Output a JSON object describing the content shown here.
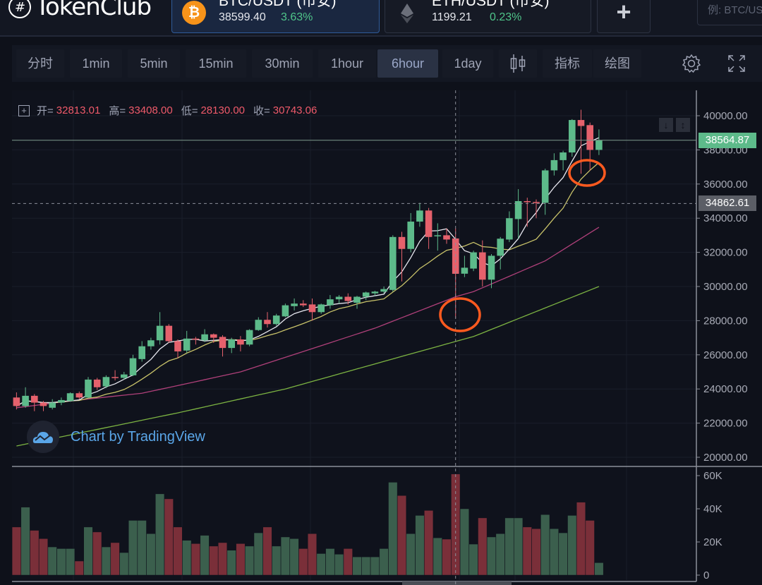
{
  "header": {
    "logo": "TokenClub",
    "tabs": [
      {
        "name": "BTC/USDT (币安)",
        "price": "38599.40",
        "change": "3.63%",
        "icon": "bitcoin-icon",
        "active": true
      },
      {
        "name": "ETH/USDT (币安)",
        "price": "1199.21",
        "change": "0.23%",
        "icon": "ethereum-icon",
        "active": false
      }
    ],
    "add_label": "+",
    "search_placeholder": "例: BTC/USDT"
  },
  "toolbar": {
    "intervals": [
      "分时",
      "1min",
      "5min",
      "15min",
      "30min",
      "1hour",
      "6hour",
      "1day"
    ],
    "active_interval": "6hour",
    "indicators_label": "指标",
    "drawing_label": "绘图",
    "icons": [
      "candlestick-type-icon",
      "gear-icon",
      "fullscreen-icon"
    ]
  },
  "legend": {
    "open_label": "开=",
    "open": "32813.01",
    "high_label": "高=",
    "high": "33408.00",
    "low_label": "低=",
    "low": "28130.00",
    "close_label": "收=",
    "close": "30743.06"
  },
  "watermark": "Chart by TradingView",
  "colors": {
    "up": "#5dba8a",
    "down": "#e5616c",
    "vol_up": "#3b5f4d",
    "vol_down": "#7a2f39",
    "ma_short": "#e8e8f0",
    "ma_mid": "#c9c36a",
    "ma_long": "#b0407a",
    "ma_longest": "#7cb342",
    "annotation": "#ff5a1f"
  },
  "chart_data": {
    "type": "candlestick",
    "price_axis": {
      "ticks": [
        "40000.00",
        "38000.00",
        "36000.00",
        "34000.00",
        "32000.00",
        "30000.00",
        "28000.00",
        "26000.00",
        "24000.00",
        "22000.00",
        "20000.00"
      ],
      "range": [
        20000,
        40000
      ]
    },
    "volume_axis": {
      "ticks": [
        "60K",
        "40K",
        "20K",
        "0"
      ],
      "range": [
        0,
        60000
      ]
    },
    "last_price_label": "38564.87",
    "crosshair_price_label": "34862.61",
    "crosshair_index": 49,
    "ohlc": [
      [
        23500,
        23800,
        22800,
        23000
      ],
      [
        23000,
        24100,
        22900,
        23600
      ],
      [
        23600,
        23700,
        22700,
        23200
      ],
      [
        23200,
        23300,
        22700,
        23000
      ],
      [
        22900,
        23400,
        22800,
        23200
      ],
      [
        23200,
        23500,
        23050,
        23350
      ],
      [
        23300,
        23800,
        23250,
        23750
      ],
      [
        23750,
        23850,
        23400,
        23500
      ],
      [
        23500,
        24700,
        23450,
        24550
      ],
      [
        24550,
        24650,
        23950,
        24100
      ],
      [
        24150,
        24800,
        24050,
        24700
      ],
      [
        24700,
        25100,
        24500,
        24650
      ],
      [
        24650,
        25000,
        24550,
        24850
      ],
      [
        24800,
        26000,
        24750,
        25800
      ],
      [
        25750,
        26800,
        25600,
        26500
      ],
      [
        26500,
        27000,
        26300,
        26850
      ],
      [
        26850,
        28500,
        26600,
        27700
      ],
      [
        27700,
        27800,
        26700,
        26800
      ],
      [
        26800,
        26900,
        25800,
        26200
      ],
      [
        26250,
        27400,
        26100,
        26950
      ],
      [
        26950,
        27050,
        26600,
        26900
      ],
      [
        26850,
        27500,
        26750,
        27200
      ],
      [
        27200,
        27250,
        26700,
        27000
      ],
      [
        27050,
        27150,
        25900,
        26400
      ],
      [
        26400,
        27000,
        26100,
        26900
      ],
      [
        26900,
        27100,
        26200,
        26600
      ],
      [
        26600,
        27500,
        26500,
        27450
      ],
      [
        27450,
        28200,
        27400,
        28050
      ],
      [
        28050,
        28500,
        27600,
        27800
      ],
      [
        27800,
        28400,
        27700,
        28300
      ],
      [
        28250,
        29000,
        28200,
        28900
      ],
      [
        28850,
        29300,
        28600,
        29000
      ],
      [
        29000,
        29200,
        28800,
        28900
      ],
      [
        28950,
        29300,
        28000,
        28500
      ],
      [
        28500,
        29000,
        28400,
        28950
      ],
      [
        28900,
        29500,
        28700,
        29250
      ],
      [
        29250,
        29500,
        29000,
        29400
      ],
      [
        29400,
        29600,
        28950,
        29150
      ],
      [
        29050,
        29450,
        28700,
        29400
      ],
      [
        29400,
        29700,
        29200,
        29650
      ],
      [
        29600,
        29750,
        29450,
        29700
      ],
      [
        29700,
        30000,
        29600,
        29850
      ],
      [
        29800,
        33000,
        29700,
        32900
      ],
      [
        32900,
        33200,
        30300,
        32200
      ],
      [
        32200,
        34300,
        32000,
        33800
      ],
      [
        33800,
        34900,
        33500,
        34450
      ],
      [
        34450,
        34600,
        32200,
        32900
      ],
      [
        32950,
        33700,
        32100,
        33000
      ],
      [
        33000,
        33400,
        32500,
        32750
      ],
      [
        32813.01,
        33408,
        28130,
        30743.06
      ],
      [
        30750,
        31800,
        30550,
        31100
      ],
      [
        31050,
        32100,
        30900,
        32000
      ],
      [
        32000,
        32700,
        30000,
        30400
      ],
      [
        30400,
        31900,
        29900,
        31800
      ],
      [
        31800,
        32900,
        31000,
        32800
      ],
      [
        32750,
        34400,
        32600,
        34000
      ],
      [
        33950,
        35700,
        32800,
        35000
      ],
      [
        35000,
        35200,
        33500,
        34950
      ],
      [
        34950,
        35100,
        34000,
        34900
      ],
      [
        34900,
        36900,
        34200,
        36800
      ],
      [
        36800,
        37800,
        36500,
        37400
      ],
      [
        37400,
        37950,
        36800,
        37850
      ],
      [
        37850,
        39800,
        37600,
        39750
      ],
      [
        39750,
        40350,
        36600,
        39400
      ],
      [
        39450,
        39600,
        36800,
        38000
      ],
      [
        38000,
        39200,
        37700,
        38565
      ]
    ],
    "volume_k": [
      29,
      41,
      27,
      22,
      17,
      16,
      16,
      8.5,
      29,
      26,
      17,
      19.6,
      13.6,
      33,
      33,
      25,
      49,
      46,
      29,
      21,
      19,
      24,
      17.5,
      19.6,
      15,
      19,
      17.5,
      25.5,
      29,
      17.5,
      23,
      22,
      16,
      25,
      13,
      16,
      12.6,
      16,
      11,
      11,
      11,
      16,
      56,
      48,
      25,
      36,
      39,
      22.5,
      21.7,
      61,
      40,
      18.7,
      34.5,
      23,
      25,
      34.5,
      34.5,
      29,
      28,
      36.5,
      28,
      25.5,
      36,
      44,
      33,
      7.5
    ],
    "moving_averages": {
      "short_period": 5,
      "mid_period": 10,
      "long_points": [
        [
          0,
          22900
        ],
        [
          6,
          23300
        ],
        [
          14,
          23750
        ],
        [
          18,
          24200
        ],
        [
          25,
          25000
        ],
        [
          40,
          27560
        ],
        [
          49,
          29400
        ],
        [
          51,
          29700
        ],
        [
          59,
          31500
        ],
        [
          65,
          33470
        ]
      ],
      "longest_points": [
        [
          0,
          20660
        ],
        [
          18,
          22600
        ],
        [
          30,
          24000
        ],
        [
          45,
          26200
        ],
        [
          51,
          27070
        ],
        [
          65,
          30000
        ]
      ]
    }
  }
}
